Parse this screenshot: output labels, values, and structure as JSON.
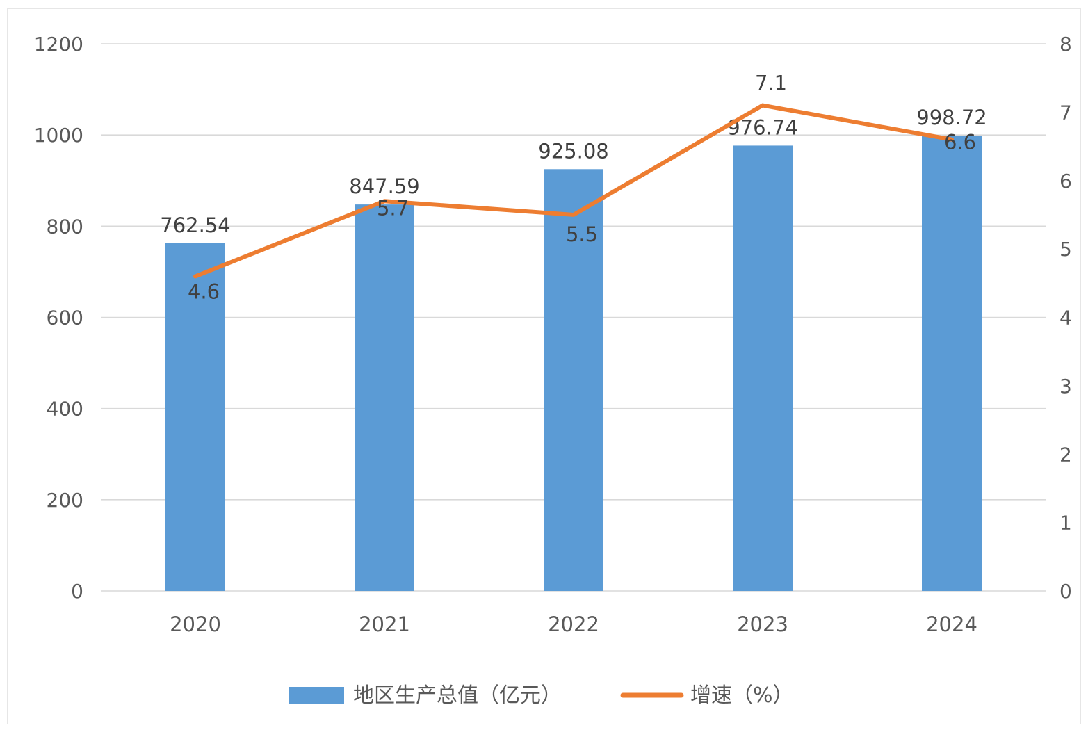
{
  "chart_data": {
    "type": "bar",
    "categories": [
      "2020",
      "2021",
      "2022",
      "2023",
      "2024"
    ],
    "series": [
      {
        "name": "地区生产总值（亿元）",
        "type": "bar",
        "axis": "left",
        "values": [
          762.54,
          847.59,
          925.08,
          976.74,
          998.72
        ],
        "labels": [
          "762.54",
          "847.59",
          "925.08",
          "976.74",
          "998.72"
        ],
        "color": "#5b9bd5"
      },
      {
        "name": "增速（%）",
        "type": "line",
        "axis": "right",
        "values": [
          4.6,
          5.7,
          5.5,
          7.1,
          6.6
        ],
        "labels": [
          "4.6",
          "5.7",
          "5.5",
          "7.1",
          "6.6"
        ],
        "color": "#ed7d31"
      }
    ],
    "y_left": {
      "min": 0,
      "max": 1200,
      "ticks": [
        "0",
        "200",
        "400",
        "600",
        "800",
        "1000",
        "1200"
      ]
    },
    "y_right": {
      "min": 0,
      "max": 8,
      "ticks": [
        "0",
        "1",
        "2",
        "3",
        "4",
        "5",
        "6",
        "7",
        "8"
      ]
    },
    "grid": true,
    "legend": "bottom",
    "title": "",
    "xlabel": "",
    "ylabel": ""
  }
}
